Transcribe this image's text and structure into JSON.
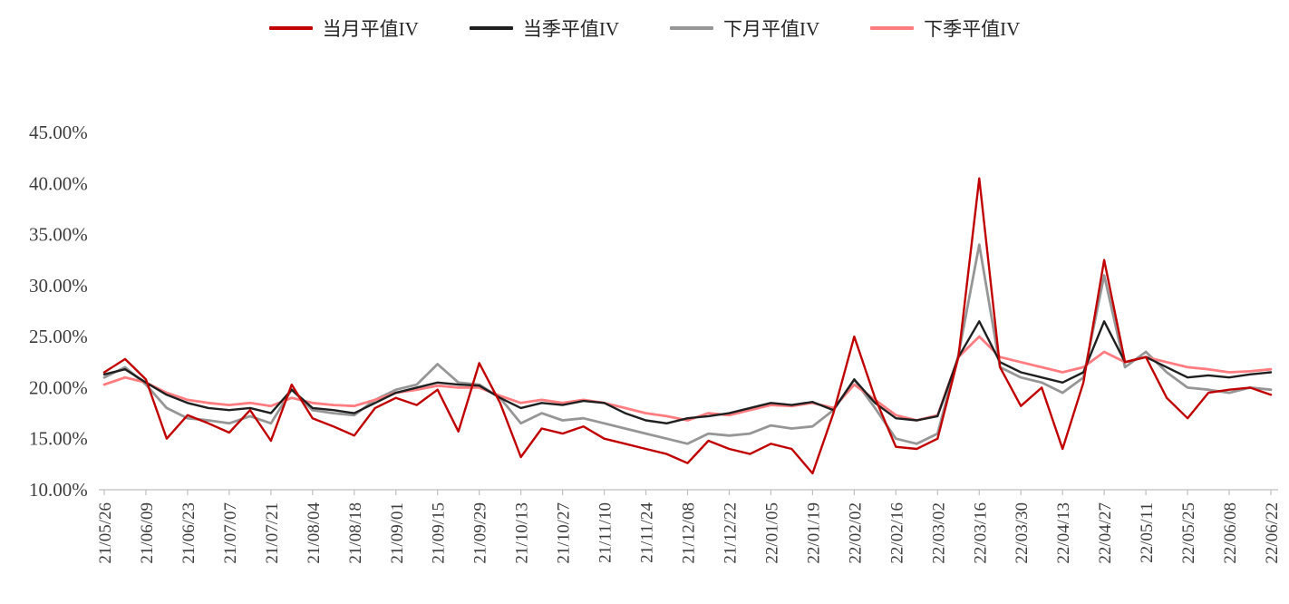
{
  "chart_data": {
    "type": "line",
    "title": "",
    "legend_position": "top-center",
    "grid": false,
    "axis_color": "#BFBFBF",
    "label_color": "#3D3D3D",
    "ylim": [
      10,
      45
    ],
    "y_step": 5,
    "y_unit": "%",
    "y_ticks": [
      "45.00%",
      "40.00%",
      "35.00%",
      "30.00%",
      "25.00%",
      "20.00%",
      "15.00%",
      "10.00%"
    ],
    "x_tick_labels": [
      "21/05/26",
      "21/06/09",
      "21/06/23",
      "21/07/07",
      "21/07/21",
      "21/08/04",
      "21/08/18",
      "21/09/01",
      "21/09/15",
      "21/09/29",
      "21/10/13",
      "21/10/27",
      "21/11/10",
      "21/11/24",
      "21/12/08",
      "21/12/22",
      "22/01/05",
      "22/01/19",
      "22/02/02",
      "22/02/16",
      "22/03/02",
      "22/03/16",
      "22/03/30",
      "22/04/13",
      "22/04/27",
      "22/05/11",
      "22/05/25",
      "22/06/08",
      "22/06/22"
    ],
    "points_per_tick": 2,
    "series": [
      {
        "name": "当月平值IV",
        "color": "#C00000",
        "values": [
          21.5,
          22.8,
          20.8,
          15.0,
          17.3,
          16.5,
          15.6,
          17.8,
          14.8,
          20.3,
          17.0,
          16.2,
          15.3,
          18.0,
          19.0,
          18.3,
          19.8,
          15.7,
          22.4,
          18.5,
          13.2,
          16.0,
          15.5,
          16.2,
          15.0,
          14.5,
          14.0,
          13.5,
          12.6,
          14.8,
          14.0,
          13.5,
          14.5,
          14.0,
          11.6,
          17.5,
          25.0,
          19.0,
          14.2,
          14.0,
          15.0,
          23.0,
          40.5,
          22.0,
          18.2,
          20.0,
          14.0,
          20.5,
          32.5,
          22.5,
          23.0,
          19.0,
          17.0,
          19.5,
          19.8,
          20.0,
          19.3
        ]
      },
      {
        "name": "当季平值IV",
        "color": "#1F1F1F",
        "values": [
          21.3,
          21.8,
          20.5,
          19.3,
          18.5,
          18.0,
          17.8,
          18.0,
          17.5,
          19.8,
          18.0,
          17.8,
          17.5,
          18.5,
          19.5,
          20.0,
          20.5,
          20.3,
          20.2,
          19.0,
          18.0,
          18.5,
          18.3,
          18.7,
          18.5,
          17.5,
          16.8,
          16.5,
          17.0,
          17.2,
          17.5,
          18.0,
          18.5,
          18.3,
          18.6,
          17.8,
          20.8,
          18.5,
          17.0,
          16.8,
          17.2,
          23.0,
          26.5,
          22.5,
          21.5,
          21.0,
          20.5,
          21.5,
          26.5,
          22.5,
          23.0,
          22.0,
          21.0,
          21.2,
          21.0,
          21.3,
          21.5
        ]
      },
      {
        "name": "下月平值IV",
        "color": "#969696",
        "values": [
          21.0,
          22.0,
          20.3,
          18.0,
          17.0,
          16.8,
          16.5,
          17.2,
          16.5,
          19.8,
          17.8,
          17.5,
          17.3,
          18.8,
          19.8,
          20.3,
          22.3,
          20.5,
          20.3,
          19.0,
          16.5,
          17.5,
          16.8,
          17.0,
          16.5,
          16.0,
          15.5,
          15.0,
          14.5,
          15.5,
          15.3,
          15.5,
          16.3,
          16.0,
          16.2,
          17.8,
          20.8,
          18.0,
          15.0,
          14.5,
          15.5,
          23.2,
          34.0,
          22.0,
          21.0,
          20.5,
          19.5,
          21.0,
          31.0,
          22.0,
          23.5,
          21.5,
          20.0,
          19.8,
          19.5,
          20.0,
          19.8
        ]
      },
      {
        "name": "下季平值IV",
        "color": "#FF7C80",
        "values": [
          20.3,
          21.0,
          20.5,
          19.5,
          18.8,
          18.5,
          18.3,
          18.5,
          18.2,
          19.0,
          18.5,
          18.3,
          18.2,
          18.8,
          19.5,
          19.8,
          20.2,
          20.0,
          20.0,
          19.2,
          18.5,
          18.8,
          18.5,
          18.8,
          18.5,
          18.0,
          17.5,
          17.2,
          16.8,
          17.5,
          17.3,
          17.8,
          18.3,
          18.2,
          18.5,
          18.0,
          20.3,
          18.8,
          17.3,
          16.8,
          17.3,
          23.0,
          25.0,
          23.0,
          22.5,
          22.0,
          21.5,
          22.0,
          23.5,
          22.5,
          23.0,
          22.5,
          22.0,
          21.8,
          21.5,
          21.6,
          21.8
        ]
      }
    ]
  }
}
